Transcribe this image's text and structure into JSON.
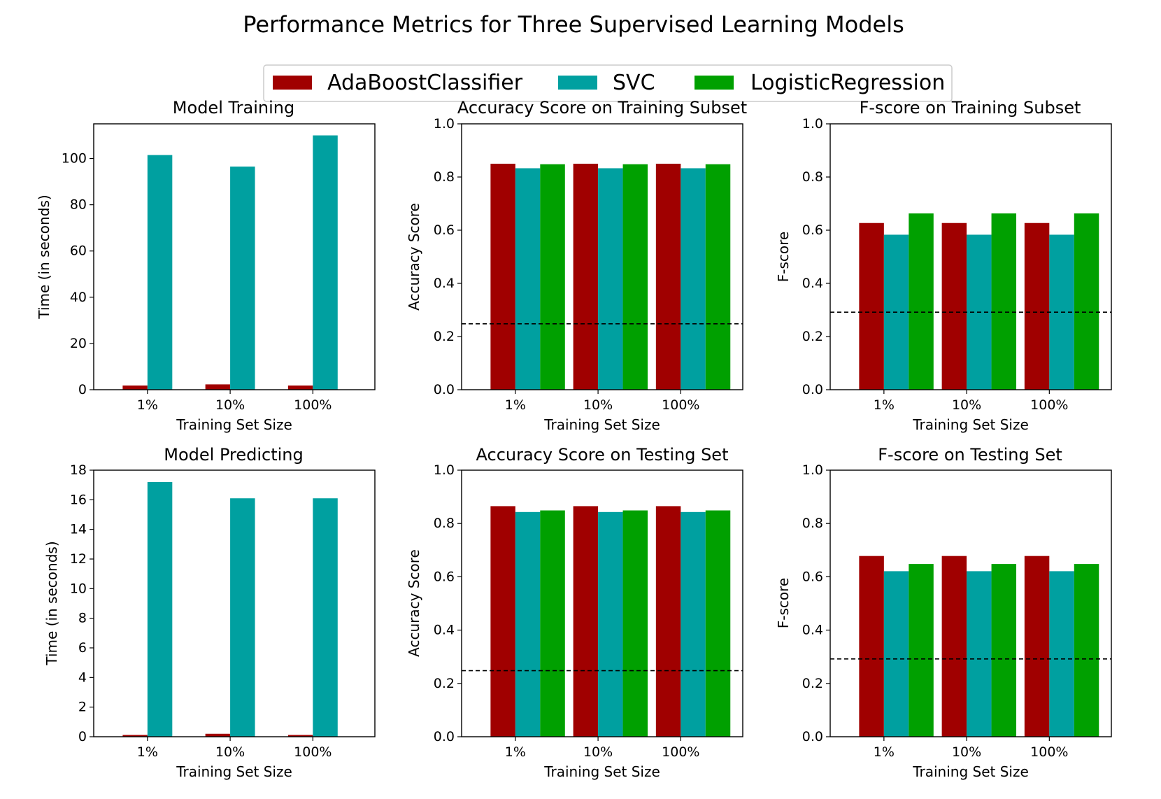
{
  "suptitle": "Performance Metrics for Three Supervised Learning Models",
  "colors": {
    "AdaBoostClassifier": "#a00000",
    "SVC": "#00a0a0",
    "LogisticRegression": "#00a000"
  },
  "legend": {
    "placement": "top-center",
    "entries": [
      "AdaBoostClassifier",
      "SVC",
      "LogisticRegression"
    ]
  },
  "chart_data": [
    {
      "type": "bar",
      "title": "Model Training",
      "xlabel": "Training Set Size",
      "ylabel": "Time (in seconds)",
      "categories": [
        "1%",
        "10%",
        "100%"
      ],
      "ylim": [
        0,
        115
      ],
      "yticks": [
        "0",
        "20",
        "40",
        "60",
        "80",
        "100"
      ],
      "yticks_values": [
        0,
        20,
        40,
        60,
        80,
        100
      ],
      "series": [
        {
          "name": "AdaBoostClassifier",
          "values": [
            1.8,
            2.3,
            1.8
          ]
        },
        {
          "name": "SVC",
          "values": [
            101.5,
            96.5,
            110.0
          ]
        },
        {
          "name": "LogisticRegression",
          "values": [
            0.1,
            0.1,
            0.1
          ]
        }
      ]
    },
    {
      "type": "bar",
      "title": "Accuracy Score on Training Subset",
      "xlabel": "Training Set Size",
      "ylabel": "Accuracy Score",
      "categories": [
        "1%",
        "10%",
        "100%"
      ],
      "ylim": [
        0,
        1.0
      ],
      "yticks": [
        "0.0",
        "0.2",
        "0.4",
        "0.6",
        "0.8",
        "1.0"
      ],
      "yticks_values": [
        0,
        0.2,
        0.4,
        0.6,
        0.8,
        1.0
      ],
      "baseline": 0.2478,
      "series": [
        {
          "name": "AdaBoostClassifier",
          "values": [
            0.85,
            0.85,
            0.85
          ]
        },
        {
          "name": "SVC",
          "values": [
            0.833,
            0.833,
            0.833
          ]
        },
        {
          "name": "LogisticRegression",
          "values": [
            0.848,
            0.848,
            0.848
          ]
        }
      ]
    },
    {
      "type": "bar",
      "title": "F-score on Training Subset",
      "xlabel": "Training Set Size",
      "ylabel": "F-score",
      "categories": [
        "1%",
        "10%",
        "100%"
      ],
      "ylim": [
        0,
        1.0
      ],
      "yticks": [
        "0.0",
        "0.2",
        "0.4",
        "0.6",
        "0.8",
        "1.0"
      ],
      "yticks_values": [
        0,
        0.2,
        0.4,
        0.6,
        0.8,
        1.0
      ],
      "baseline": 0.2917,
      "series": [
        {
          "name": "AdaBoostClassifier",
          "values": [
            0.627,
            0.627,
            0.627
          ]
        },
        {
          "name": "SVC",
          "values": [
            0.583,
            0.583,
            0.583
          ]
        },
        {
          "name": "LogisticRegression",
          "values": [
            0.663,
            0.663,
            0.663
          ]
        }
      ]
    },
    {
      "type": "bar",
      "title": "Model Predicting",
      "xlabel": "Training Set Size",
      "ylabel": "Time (in seconds)",
      "categories": [
        "1%",
        "10%",
        "100%"
      ],
      "ylim": [
        0,
        18
      ],
      "yticks": [
        "0",
        "2",
        "4",
        "6",
        "8",
        "10",
        "12",
        "14",
        "16",
        "18"
      ],
      "yticks_values": [
        0,
        2,
        4,
        6,
        8,
        10,
        12,
        14,
        16,
        18
      ],
      "series": [
        {
          "name": "AdaBoostClassifier",
          "values": [
            0.12,
            0.2,
            0.12
          ]
        },
        {
          "name": "SVC",
          "values": [
            17.2,
            16.1,
            16.1
          ]
        },
        {
          "name": "LogisticRegression",
          "values": [
            0.01,
            0.01,
            0.01
          ]
        }
      ]
    },
    {
      "type": "bar",
      "title": "Accuracy Score on Testing Set",
      "xlabel": "Training Set Size",
      "ylabel": "Accuracy Score",
      "categories": [
        "1%",
        "10%",
        "100%"
      ],
      "ylim": [
        0,
        1.0
      ],
      "yticks": [
        "0.0",
        "0.2",
        "0.4",
        "0.6",
        "0.8",
        "1.0"
      ],
      "yticks_values": [
        0,
        0.2,
        0.4,
        0.6,
        0.8,
        1.0
      ],
      "baseline": 0.2478,
      "series": [
        {
          "name": "AdaBoostClassifier",
          "values": [
            0.865,
            0.865,
            0.865
          ]
        },
        {
          "name": "SVC",
          "values": [
            0.843,
            0.843,
            0.843
          ]
        },
        {
          "name": "LogisticRegression",
          "values": [
            0.849,
            0.849,
            0.849
          ]
        }
      ]
    },
    {
      "type": "bar",
      "title": "F-score on Testing Set",
      "xlabel": "Training Set Size",
      "ylabel": "F-score",
      "categories": [
        "1%",
        "10%",
        "100%"
      ],
      "ylim": [
        0,
        1.0
      ],
      "yticks": [
        "0.0",
        "0.2",
        "0.4",
        "0.6",
        "0.8",
        "1.0"
      ],
      "yticks_values": [
        0,
        0.2,
        0.4,
        0.6,
        0.8,
        1.0
      ],
      "baseline": 0.2917,
      "series": [
        {
          "name": "AdaBoostClassifier",
          "values": [
            0.678,
            0.678,
            0.678
          ]
        },
        {
          "name": "SVC",
          "values": [
            0.621,
            0.621,
            0.621
          ]
        },
        {
          "name": "LogisticRegression",
          "values": [
            0.648,
            0.648,
            0.648
          ]
        }
      ]
    }
  ]
}
